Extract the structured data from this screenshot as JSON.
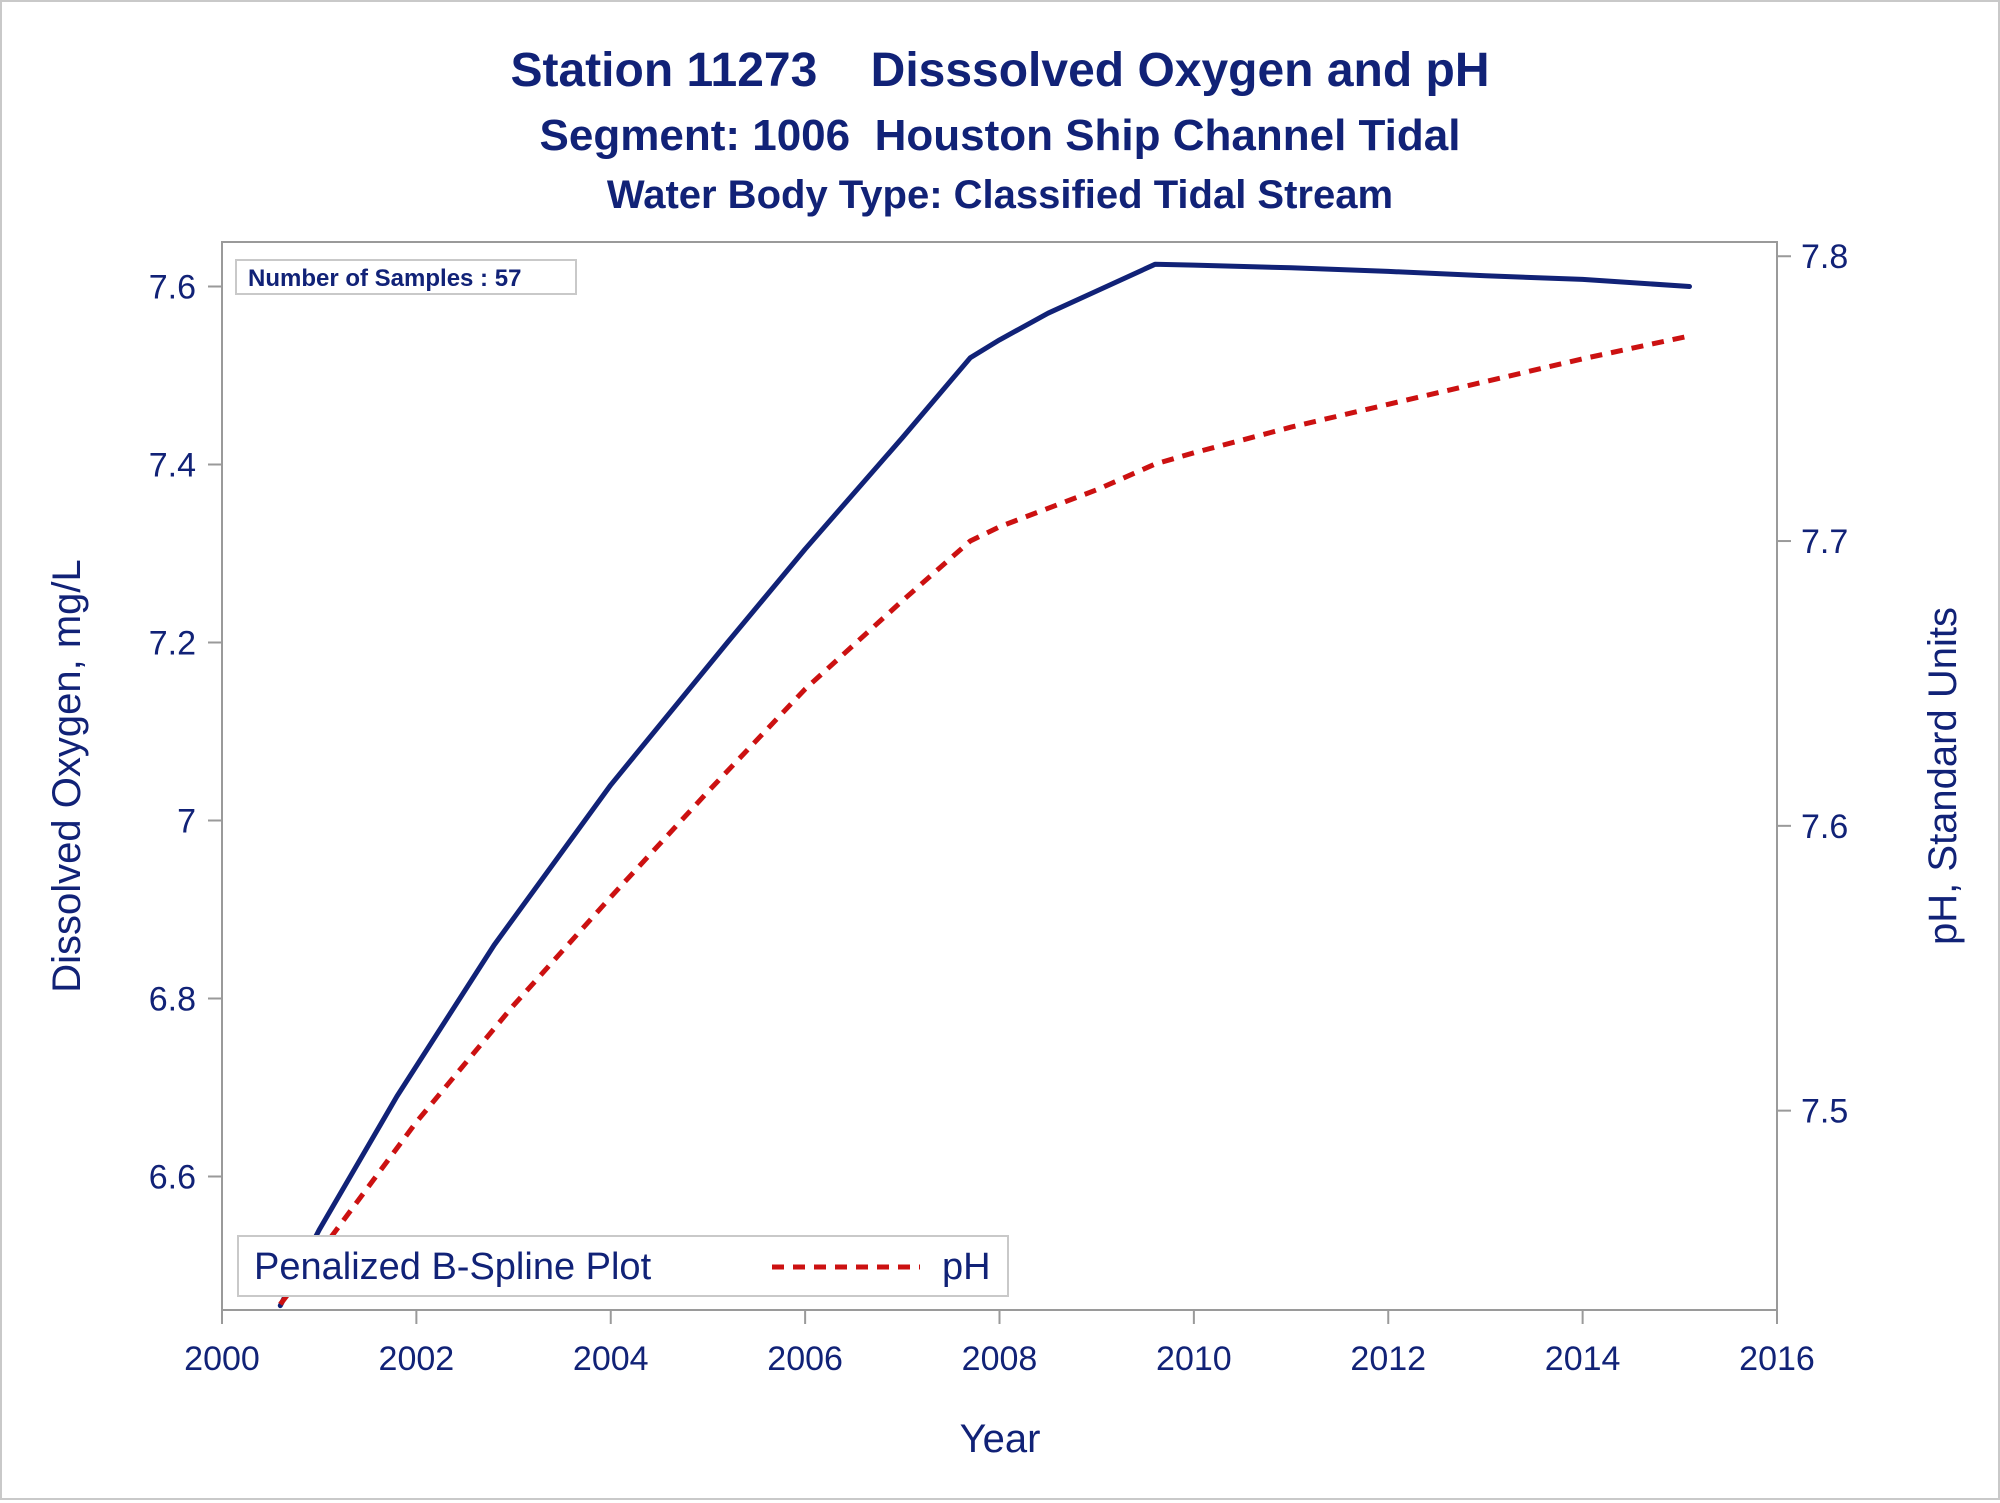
{
  "chart_data": {
    "type": "line",
    "title": "Station 11273    Disssolved Oxygen and pH",
    "subtitle": "Segment: 1006  Houston Ship Channel Tidal",
    "subtitle2": "Water Body Type: Classified Tidal Stream",
    "inset_label": "Number of Samples : 57",
    "xlabel": "Year",
    "ylabel": "Dissolved Oxygen, mg/L",
    "y2label": "pH, Standard Units",
    "xlim": [
      2000,
      2016
    ],
    "ylim": [
      6.45,
      7.65
    ],
    "y2lim": [
      7.43,
      7.805
    ],
    "x_ticks": [
      "2000",
      "2002",
      "2004",
      "2006",
      "2008",
      "2010",
      "2012",
      "2014",
      "2016"
    ],
    "y_ticks": [
      "6.6",
      "6.8",
      "7",
      "7.2",
      "7.4",
      "7.6"
    ],
    "y2_ticks": [
      "7.5",
      "7.6",
      "7.7",
      "7.8"
    ],
    "legend": {
      "title": "Penalized B-Spline Plot",
      "placement": "bottom-left",
      "entries": [
        "pH"
      ]
    },
    "series": [
      {
        "key": "do",
        "axis": "left",
        "style": "solid",
        "color": "#112277",
        "x": [
          2000.6,
          2001.0,
          2001.8,
          2002.8,
          2004.0,
          2005.2,
          2006.0,
          2007.0,
          2007.7,
          2008.0,
          2008.5,
          2009.0,
          2009.6,
          2010.0,
          2011.0,
          2012.0,
          2013.0,
          2014.0,
          2015.1
        ],
        "values": [
          6.455,
          6.54,
          6.69,
          6.86,
          7.04,
          7.2,
          7.305,
          7.43,
          7.52,
          7.54,
          7.57,
          7.595,
          7.625,
          7.624,
          7.621,
          7.617,
          7.612,
          7.608,
          7.6
        ]
      },
      {
        "key": "ph",
        "name": "pH",
        "axis": "right",
        "style": "dashed",
        "color": "#cc1111",
        "x": [
          2000.6,
          2001.0,
          2002.0,
          2003.0,
          2004.0,
          2005.0,
          2006.0,
          2007.0,
          2007.7,
          2008.0,
          2009.0,
          2009.6,
          2010.0,
          2011.0,
          2012.0,
          2013.0,
          2014.0,
          2015.1
        ],
        "values": [
          7.432,
          7.45,
          7.496,
          7.537,
          7.575,
          7.612,
          7.648,
          7.679,
          7.7,
          7.705,
          7.718,
          7.727,
          7.731,
          7.74,
          7.748,
          7.756,
          7.764,
          7.772
        ]
      }
    ]
  }
}
